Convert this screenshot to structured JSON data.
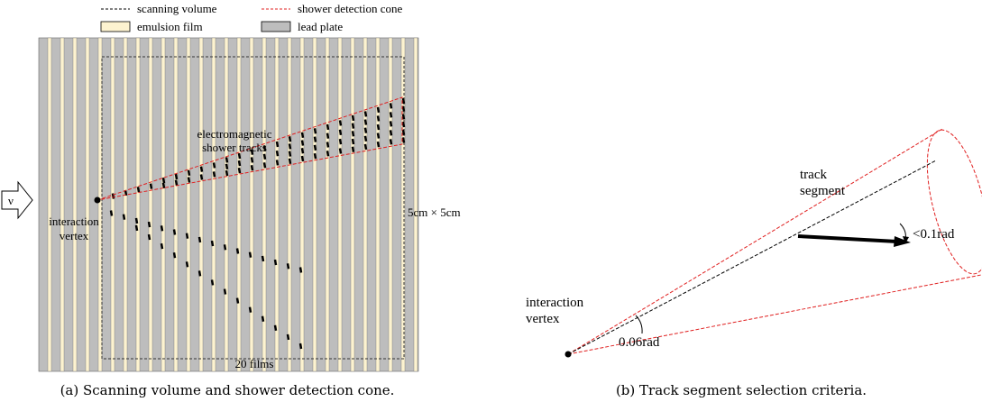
{
  "legend": {
    "scanning": "scanning volume",
    "cone": "shower detection cone",
    "film": "emulsion film",
    "lead": "lead plate"
  },
  "panel_a": {
    "shower_line1": "electromagnetic",
    "shower_line2": "shower tracks",
    "vertex_line1": "interaction",
    "vertex_line2": "vertex",
    "beam": "ν",
    "size": "5cm × 5cm",
    "films": "20 films",
    "caption": "(a) Scanning volume and shower detection cone."
  },
  "panel_b": {
    "track_line1": "track",
    "track_line2": "segment",
    "angle_track": "<0.1rad",
    "vertex_line1": "interaction",
    "vertex_line2": "vertex",
    "angle_cone": "0.06rad",
    "caption": "(b) Track segment selection criteria."
  }
}
